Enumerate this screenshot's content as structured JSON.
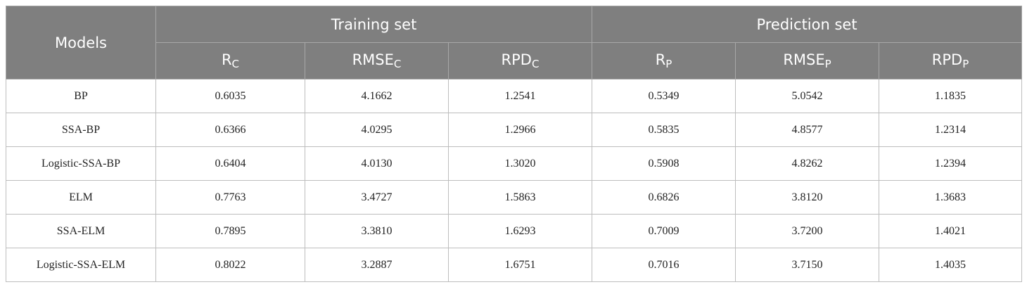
{
  "table": {
    "group_header": [
      "Models",
      "Training set",
      "Prediction set"
    ],
    "sub_header": [
      {
        "main": "R",
        "sub": "C"
      },
      {
        "main": "RMSE",
        "sub": "C"
      },
      {
        "main": "RPD",
        "sub": "C"
      },
      {
        "main": "R",
        "sub": "P"
      },
      {
        "main": "RMSE",
        "sub": "P"
      },
      {
        "main": "RPD",
        "sub": "P"
      }
    ],
    "rows": [
      [
        "BP",
        "0.6035",
        "4.1662",
        "1.2541",
        "0.5349",
        "5.0542",
        "1.1835"
      ],
      [
        "SSA-BP",
        "0.6366",
        "4.0295",
        "1.2966",
        "0.5835",
        "4.8577",
        "1.2314"
      ],
      [
        "Logistic-SSA-BP",
        "0.6404",
        "4.0130",
        "1.3020",
        "0.5908",
        "4.8262",
        "1.2394"
      ],
      [
        "ELM",
        "0.7763",
        "3.4727",
        "1.5863",
        "0.6826",
        "3.8120",
        "1.3683"
      ],
      [
        "SSA-ELM",
        "0.7895",
        "3.3810",
        "1.6293",
        "0.7009",
        "3.7200",
        "1.4021"
      ],
      [
        "Logistic-SSA-ELM",
        "0.8022",
        "3.2887",
        "1.6751",
        "0.7016",
        "3.7150",
        "1.4035"
      ]
    ]
  }
}
